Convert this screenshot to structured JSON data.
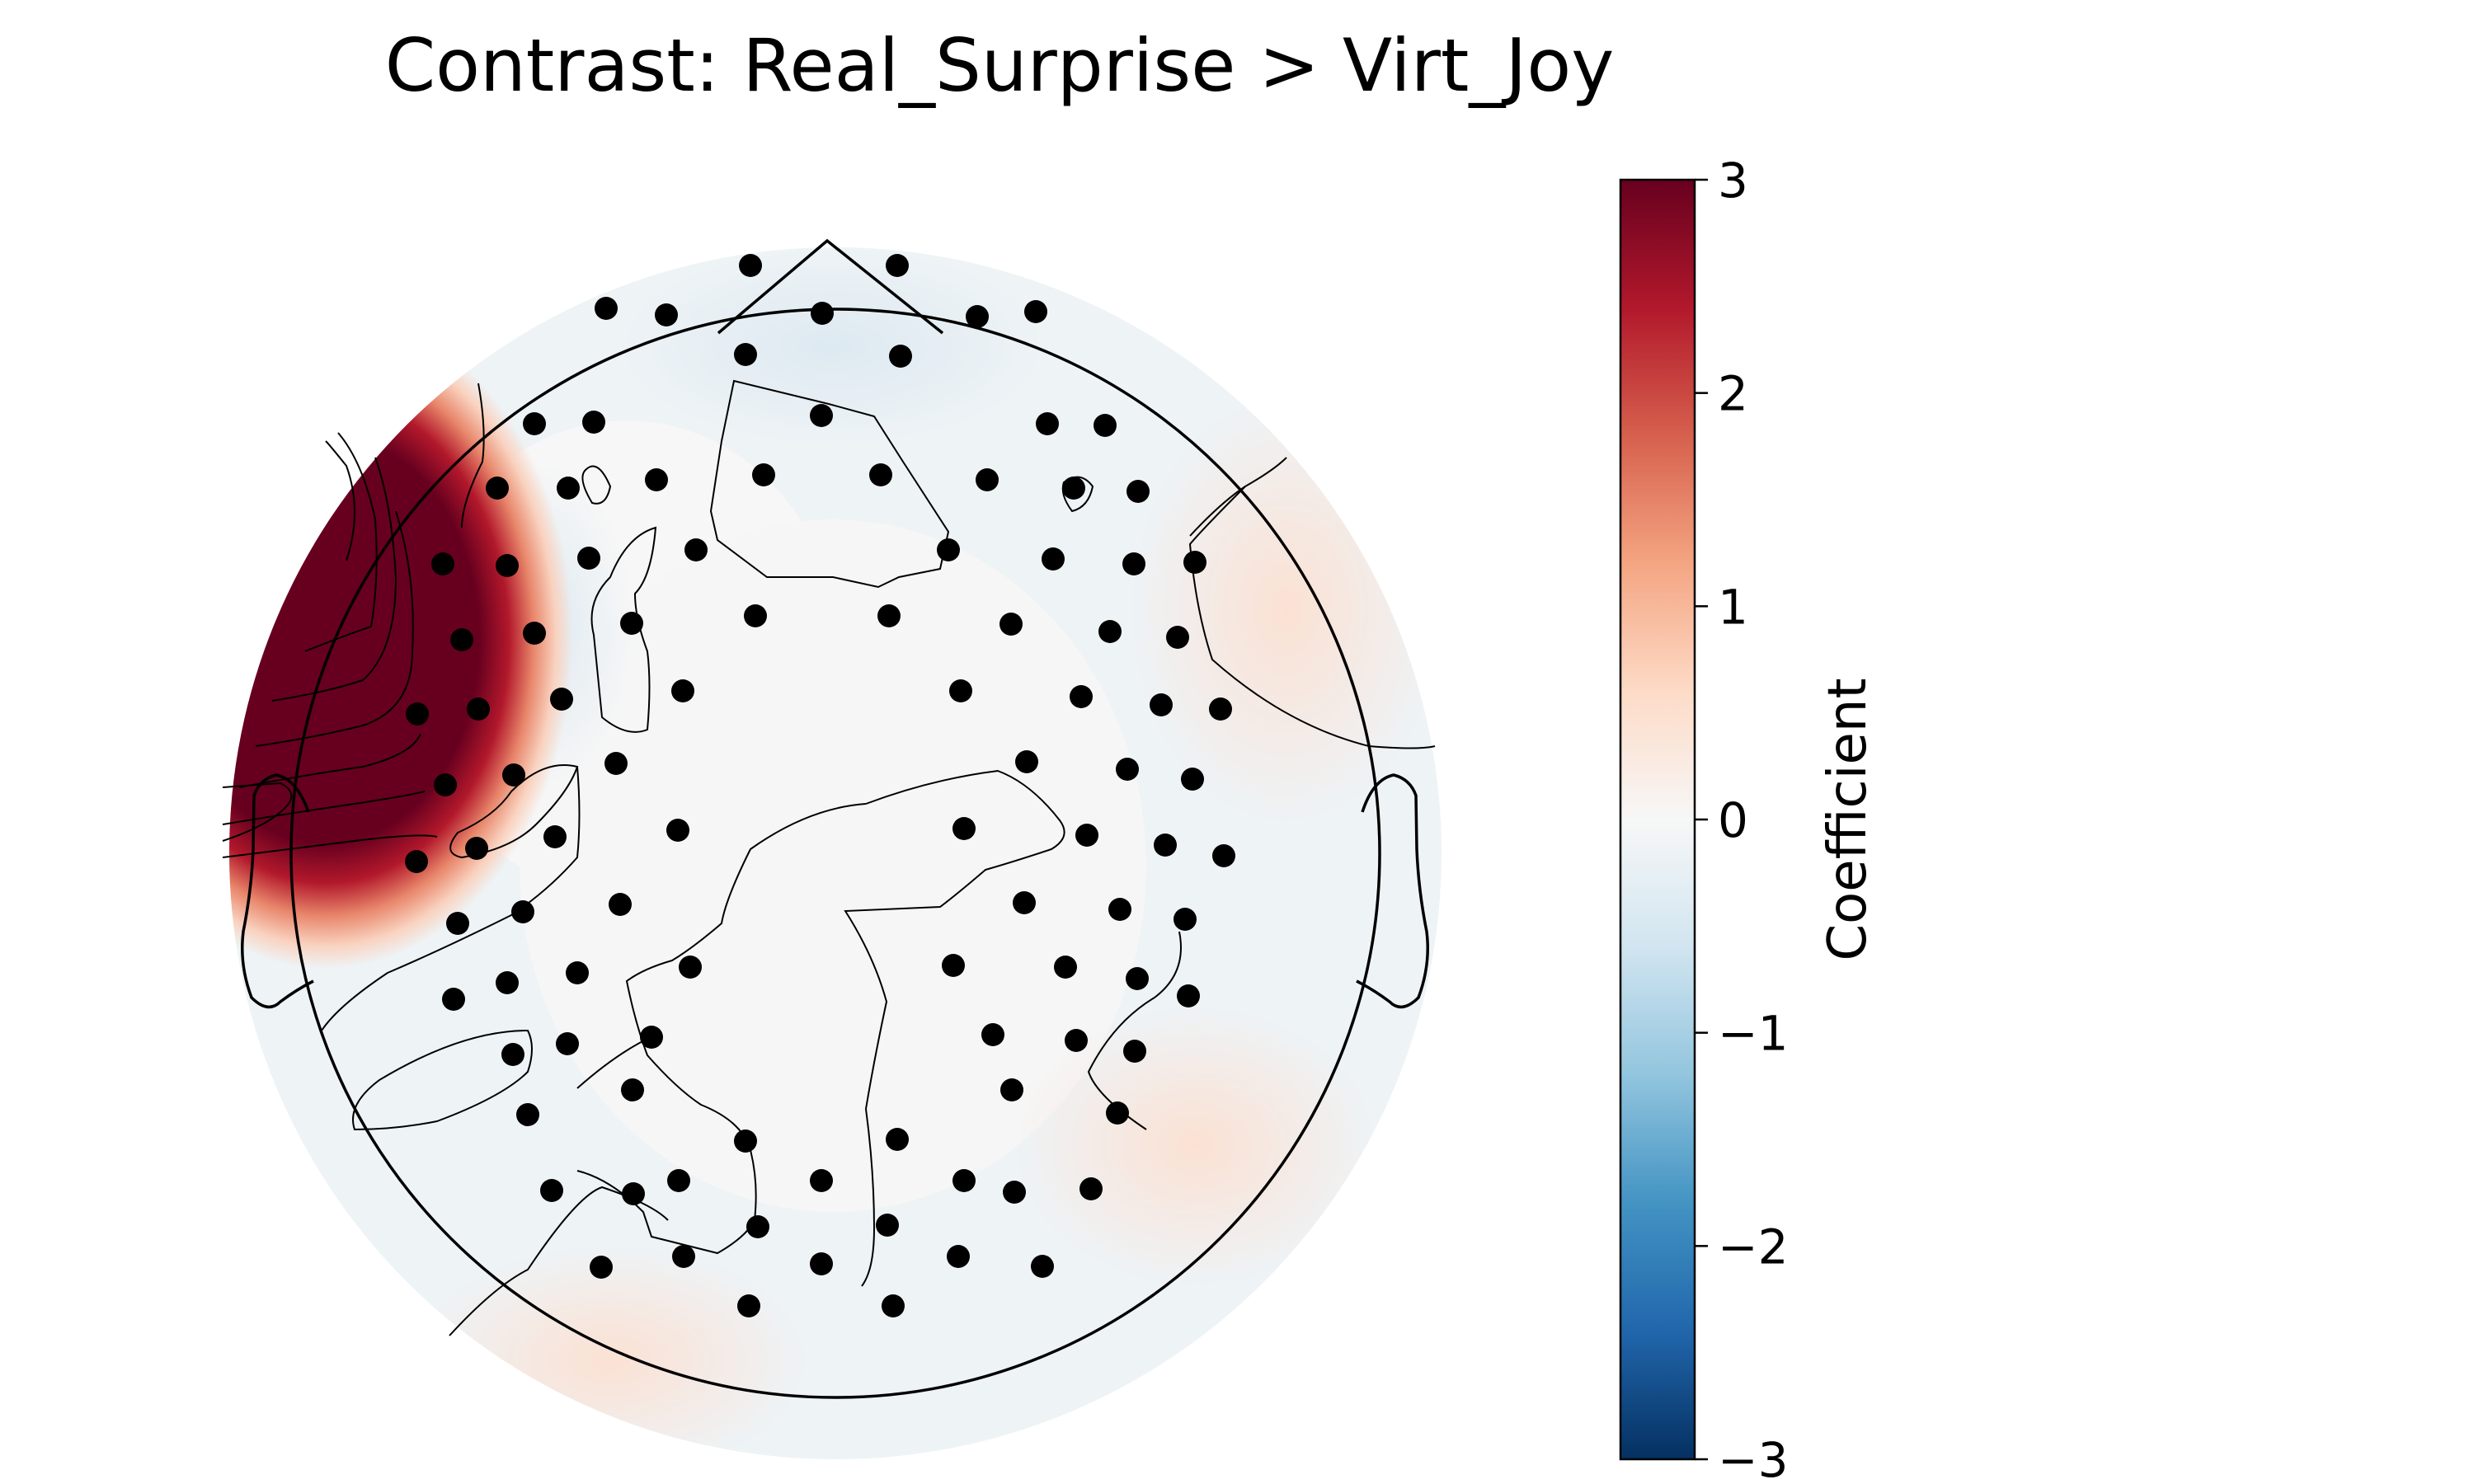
{
  "chart_data": {
    "type": "heatmap",
    "subtype": "eeg-topomap",
    "title": "Contrast: Real_Surprise > Virt_Joy",
    "colorbar": {
      "label": "Coefficient",
      "colormap": "RdBu_r",
      "vmin": -3,
      "vmax": 3,
      "ticks": [
        3,
        2,
        1,
        0,
        -1,
        -2,
        -3
      ],
      "tick_labels": [
        "3",
        "2",
        "1",
        "0",
        "−1",
        "−2",
        "−3"
      ],
      "colors": [
        "#67001f",
        "#b2182b",
        "#d6604d",
        "#f4a582",
        "#fddbc7",
        "#f7f7f7",
        "#d1e5f0",
        "#92c5de",
        "#4393c3",
        "#2166ac",
        "#053061"
      ]
    },
    "regions": [
      {
        "location": "left-anterior-temporal",
        "value": 3.0,
        "note": "saturated positive"
      },
      {
        "location": "right-temporal",
        "value": 0.3
      },
      {
        "location": "left-occipital",
        "value": 0.3
      },
      {
        "location": "right-occipital",
        "value": 0.3
      },
      {
        "location": "frontal",
        "value": -0.1
      },
      {
        "location": "central",
        "value": 0.0
      }
    ],
    "sensor_count": 128,
    "sensor_color": "#000000"
  }
}
